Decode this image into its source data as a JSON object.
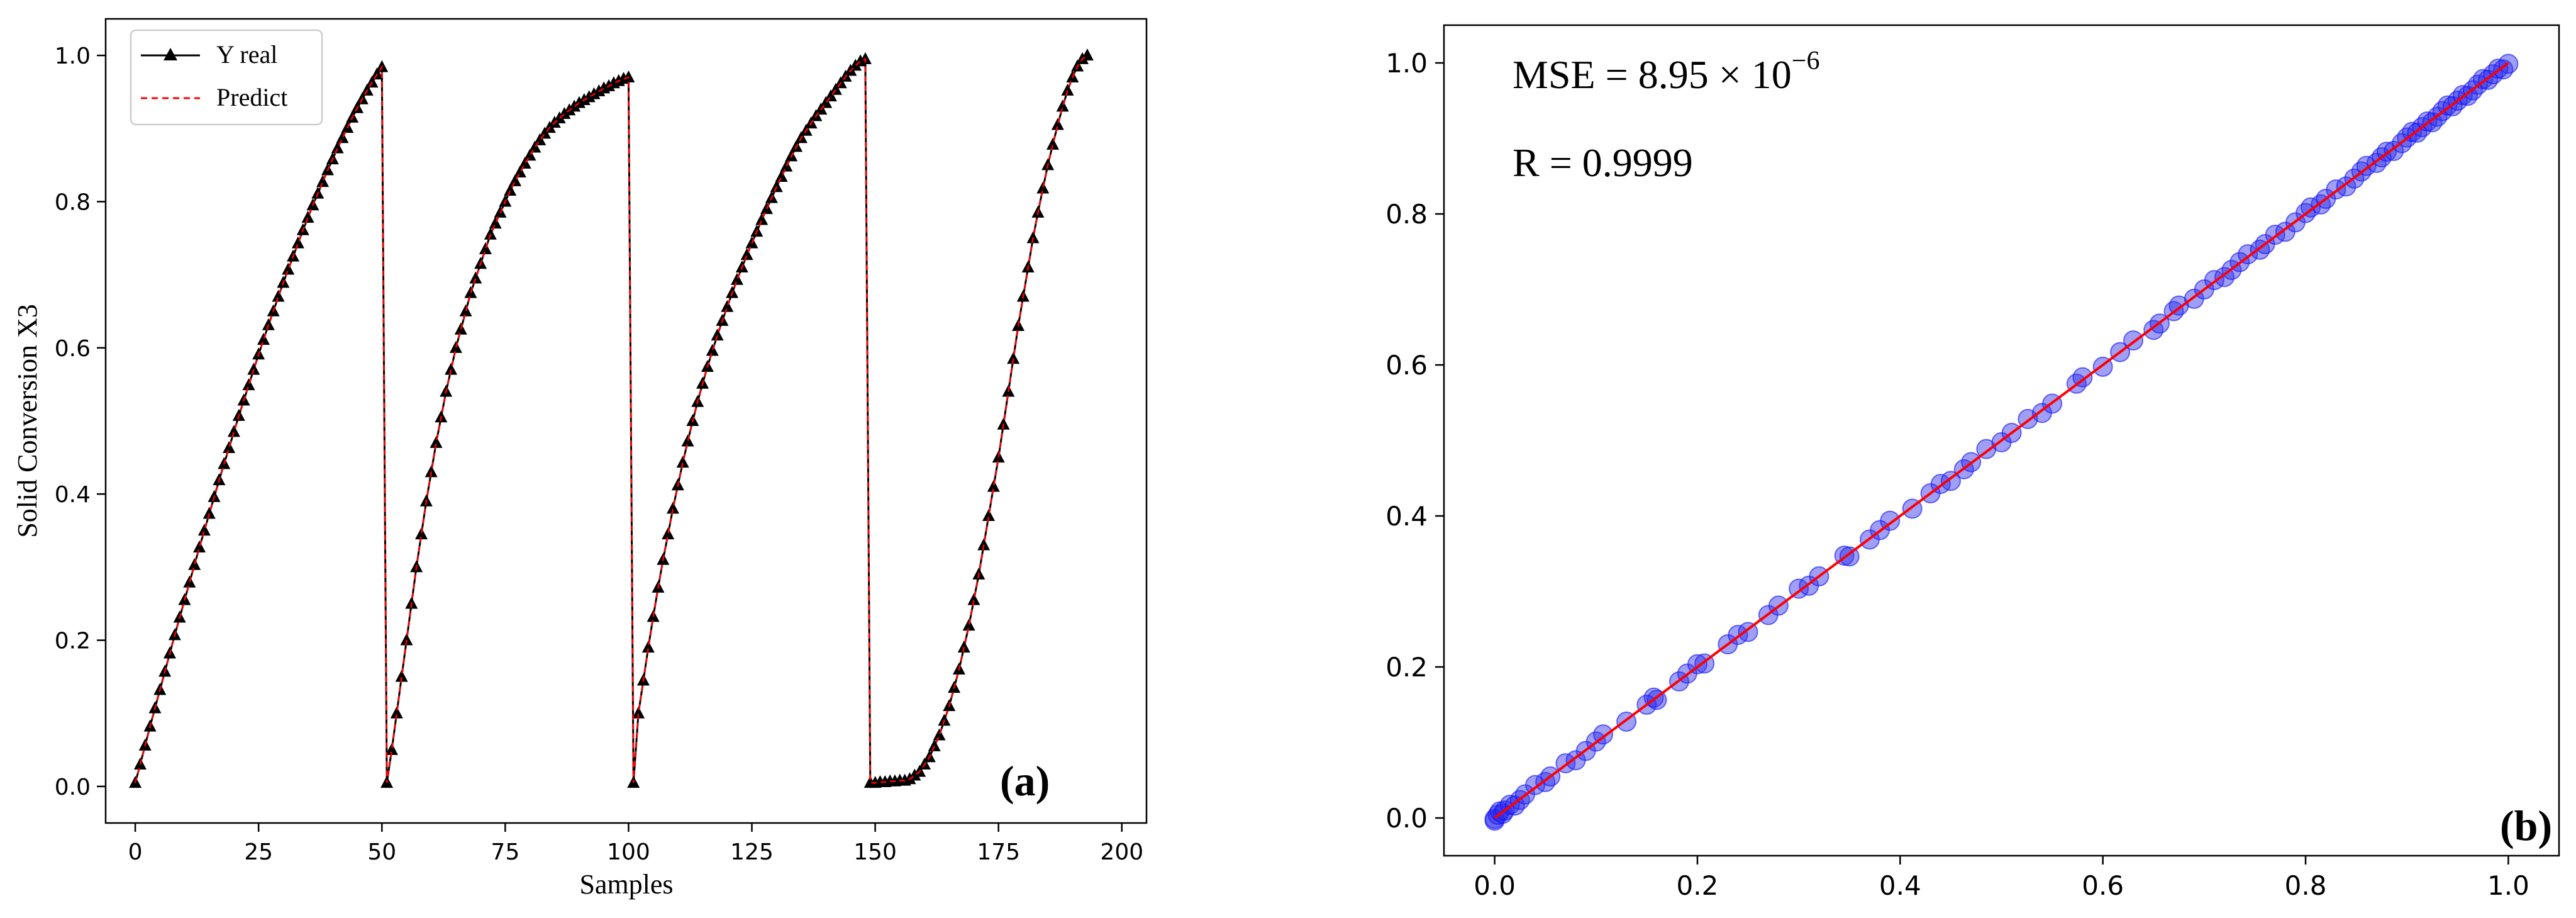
{
  "colors": {
    "real_line": "#000000",
    "predict_line": "#ff0000",
    "scatter_fill": "#2a2ae8",
    "scatter_edge": "#1010ff",
    "fit_line": "#ff0000",
    "axis": "#000000"
  },
  "chart_data": [
    {
      "panel_label": "(a)",
      "type": "line",
      "xlabel": "Samples",
      "ylabel": "Solid Conversion X3",
      "xlim": [
        -6,
        205
      ],
      "ylim": [
        -0.05,
        1.05
      ],
      "xticks": [
        0,
        25,
        50,
        75,
        100,
        125,
        150,
        175,
        200
      ],
      "yticks": [
        0.0,
        0.2,
        0.4,
        0.6,
        0.8,
        1.0
      ],
      "xtick_labels": [
        "0",
        "25",
        "50",
        "75",
        "100",
        "125",
        "150",
        "175",
        "200"
      ],
      "ytick_labels": [
        "0.0",
        "0.2",
        "0.4",
        "0.6",
        "0.8",
        "1.0"
      ],
      "legend_position": "top-left",
      "series": [
        {
          "name": "Y real",
          "style": "solid black line with triangle markers",
          "segments": [
            {
              "x_start": 0,
              "values": [
                0.005,
                0.03,
                0.056,
                0.082,
                0.107,
                0.132,
                0.157,
                0.182,
                0.207,
                0.231,
                0.255,
                0.279,
                0.303,
                0.327,
                0.35,
                0.373,
                0.396,
                0.419,
                0.441,
                0.463,
                0.485,
                0.507,
                0.528,
                0.549,
                0.57,
                0.591,
                0.611,
                0.631,
                0.65,
                0.67,
                0.689,
                0.707,
                0.725,
                0.743,
                0.761,
                0.778,
                0.795,
                0.811,
                0.827,
                0.843,
                0.858,
                0.873,
                0.887,
                0.901,
                0.915,
                0.928,
                0.94,
                0.952,
                0.963,
                0.974,
                0.984
              ]
            },
            {
              "x_start": 51,
              "values": [
                0.005,
                0.05,
                0.1,
                0.15,
                0.2,
                0.25,
                0.3,
                0.345,
                0.39,
                0.43,
                0.47,
                0.505,
                0.54,
                0.57,
                0.6,
                0.625,
                0.65,
                0.675,
                0.695,
                0.715,
                0.735,
                0.755,
                0.77,
                0.785,
                0.8,
                0.815,
                0.828,
                0.84,
                0.852,
                0.863,
                0.874,
                0.884,
                0.893,
                0.901,
                0.908,
                0.914,
                0.92,
                0.925,
                0.93,
                0.935,
                0.939,
                0.943,
                0.947,
                0.951,
                0.955,
                0.958,
                0.962,
                0.965,
                0.968,
                0.97
              ]
            },
            {
              "x_start": 101,
              "values": [
                0.005,
                0.1,
                0.145,
                0.19,
                0.232,
                0.272,
                0.31,
                0.345,
                0.38,
                0.412,
                0.443,
                0.472,
                0.5,
                0.526,
                0.551,
                0.574,
                0.596,
                0.617,
                0.637,
                0.656,
                0.675,
                0.693,
                0.71,
                0.727,
                0.743,
                0.759,
                0.775,
                0.79,
                0.805,
                0.82,
                0.834,
                0.848,
                0.862,
                0.875,
                0.887,
                0.897,
                0.907,
                0.917,
                0.926,
                0.935,
                0.944,
                0.953,
                0.962,
                0.971,
                0.979,
                0.986,
                0.992,
                0.995
              ]
            },
            {
              "x_start": 149,
              "values": [
                0.005,
                0.005,
                0.006,
                0.006,
                0.007,
                0.007,
                0.008,
                0.008,
                0.01,
                0.015,
                0.02,
                0.03,
                0.04,
                0.055,
                0.07,
                0.09,
                0.11,
                0.135,
                0.16,
                0.19,
                0.22,
                0.255,
                0.29,
                0.33,
                0.37,
                0.41,
                0.45,
                0.495,
                0.54,
                0.585,
                0.63,
                0.67,
                0.71,
                0.75,
                0.785,
                0.818,
                0.85,
                0.878,
                0.905,
                0.93,
                0.952,
                0.97,
                0.985,
                0.995,
                1.0
              ]
            }
          ]
        },
        {
          "name": "Predict",
          "style": "dashed red line",
          "note": "follows Y real within ±0.005"
        }
      ]
    },
    {
      "panel_label": "(b)",
      "type": "scatter",
      "xlabel": "",
      "ylabel": "",
      "xlim": [
        -0.05,
        1.05
      ],
      "ylim": [
        -0.05,
        1.05
      ],
      "xticks": [
        0.0,
        0.2,
        0.4,
        0.6,
        0.8,
        1.0
      ],
      "yticks": [
        0.0,
        0.2,
        0.4,
        0.6,
        0.8,
        1.0
      ],
      "xtick_labels": [
        "0.0",
        "0.2",
        "0.4",
        "0.6",
        "0.8",
        "1.0"
      ],
      "ytick_labels": [
        "0.0",
        "0.2",
        "0.4",
        "0.6",
        "0.8",
        "1.0"
      ],
      "annotations": {
        "mse_text": "MSE = 8.95 × 10",
        "mse_exponent": "−6",
        "r_text": "R = 0.9999"
      },
      "fit_line": {
        "x": [
          0.0,
          1.0
        ],
        "y": [
          0.0,
          1.0
        ],
        "color": "red"
      },
      "points_x": [
        0.0,
        0.0,
        0.003,
        0.005,
        0.008,
        0.01,
        0.015,
        0.02,
        0.025,
        0.03,
        0.04,
        0.05,
        0.055,
        0.07,
        0.08,
        0.09,
        0.1,
        0.107,
        0.13,
        0.15,
        0.157,
        0.16,
        0.182,
        0.19,
        0.2,
        0.207,
        0.23,
        0.24,
        0.25,
        0.27,
        0.28,
        0.3,
        0.31,
        0.32,
        0.345,
        0.35,
        0.37,
        0.38,
        0.39,
        0.412,
        0.43,
        0.44,
        0.45,
        0.463,
        0.47,
        0.485,
        0.5,
        0.51,
        0.526,
        0.54,
        0.55,
        0.574,
        0.58,
        0.6,
        0.617,
        0.63,
        0.65,
        0.656,
        0.67,
        0.675,
        0.69,
        0.7,
        0.71,
        0.72,
        0.727,
        0.735,
        0.743,
        0.755,
        0.76,
        0.77,
        0.78,
        0.79,
        0.8,
        0.805,
        0.815,
        0.82,
        0.83,
        0.84,
        0.848,
        0.855,
        0.86,
        0.87,
        0.875,
        0.88,
        0.887,
        0.895,
        0.9,
        0.905,
        0.91,
        0.915,
        0.92,
        0.925,
        0.93,
        0.935,
        0.94,
        0.945,
        0.95,
        0.955,
        0.96,
        0.965,
        0.97,
        0.975,
        0.98,
        0.985,
        0.99,
        0.995,
        1.0
      ]
    }
  ]
}
